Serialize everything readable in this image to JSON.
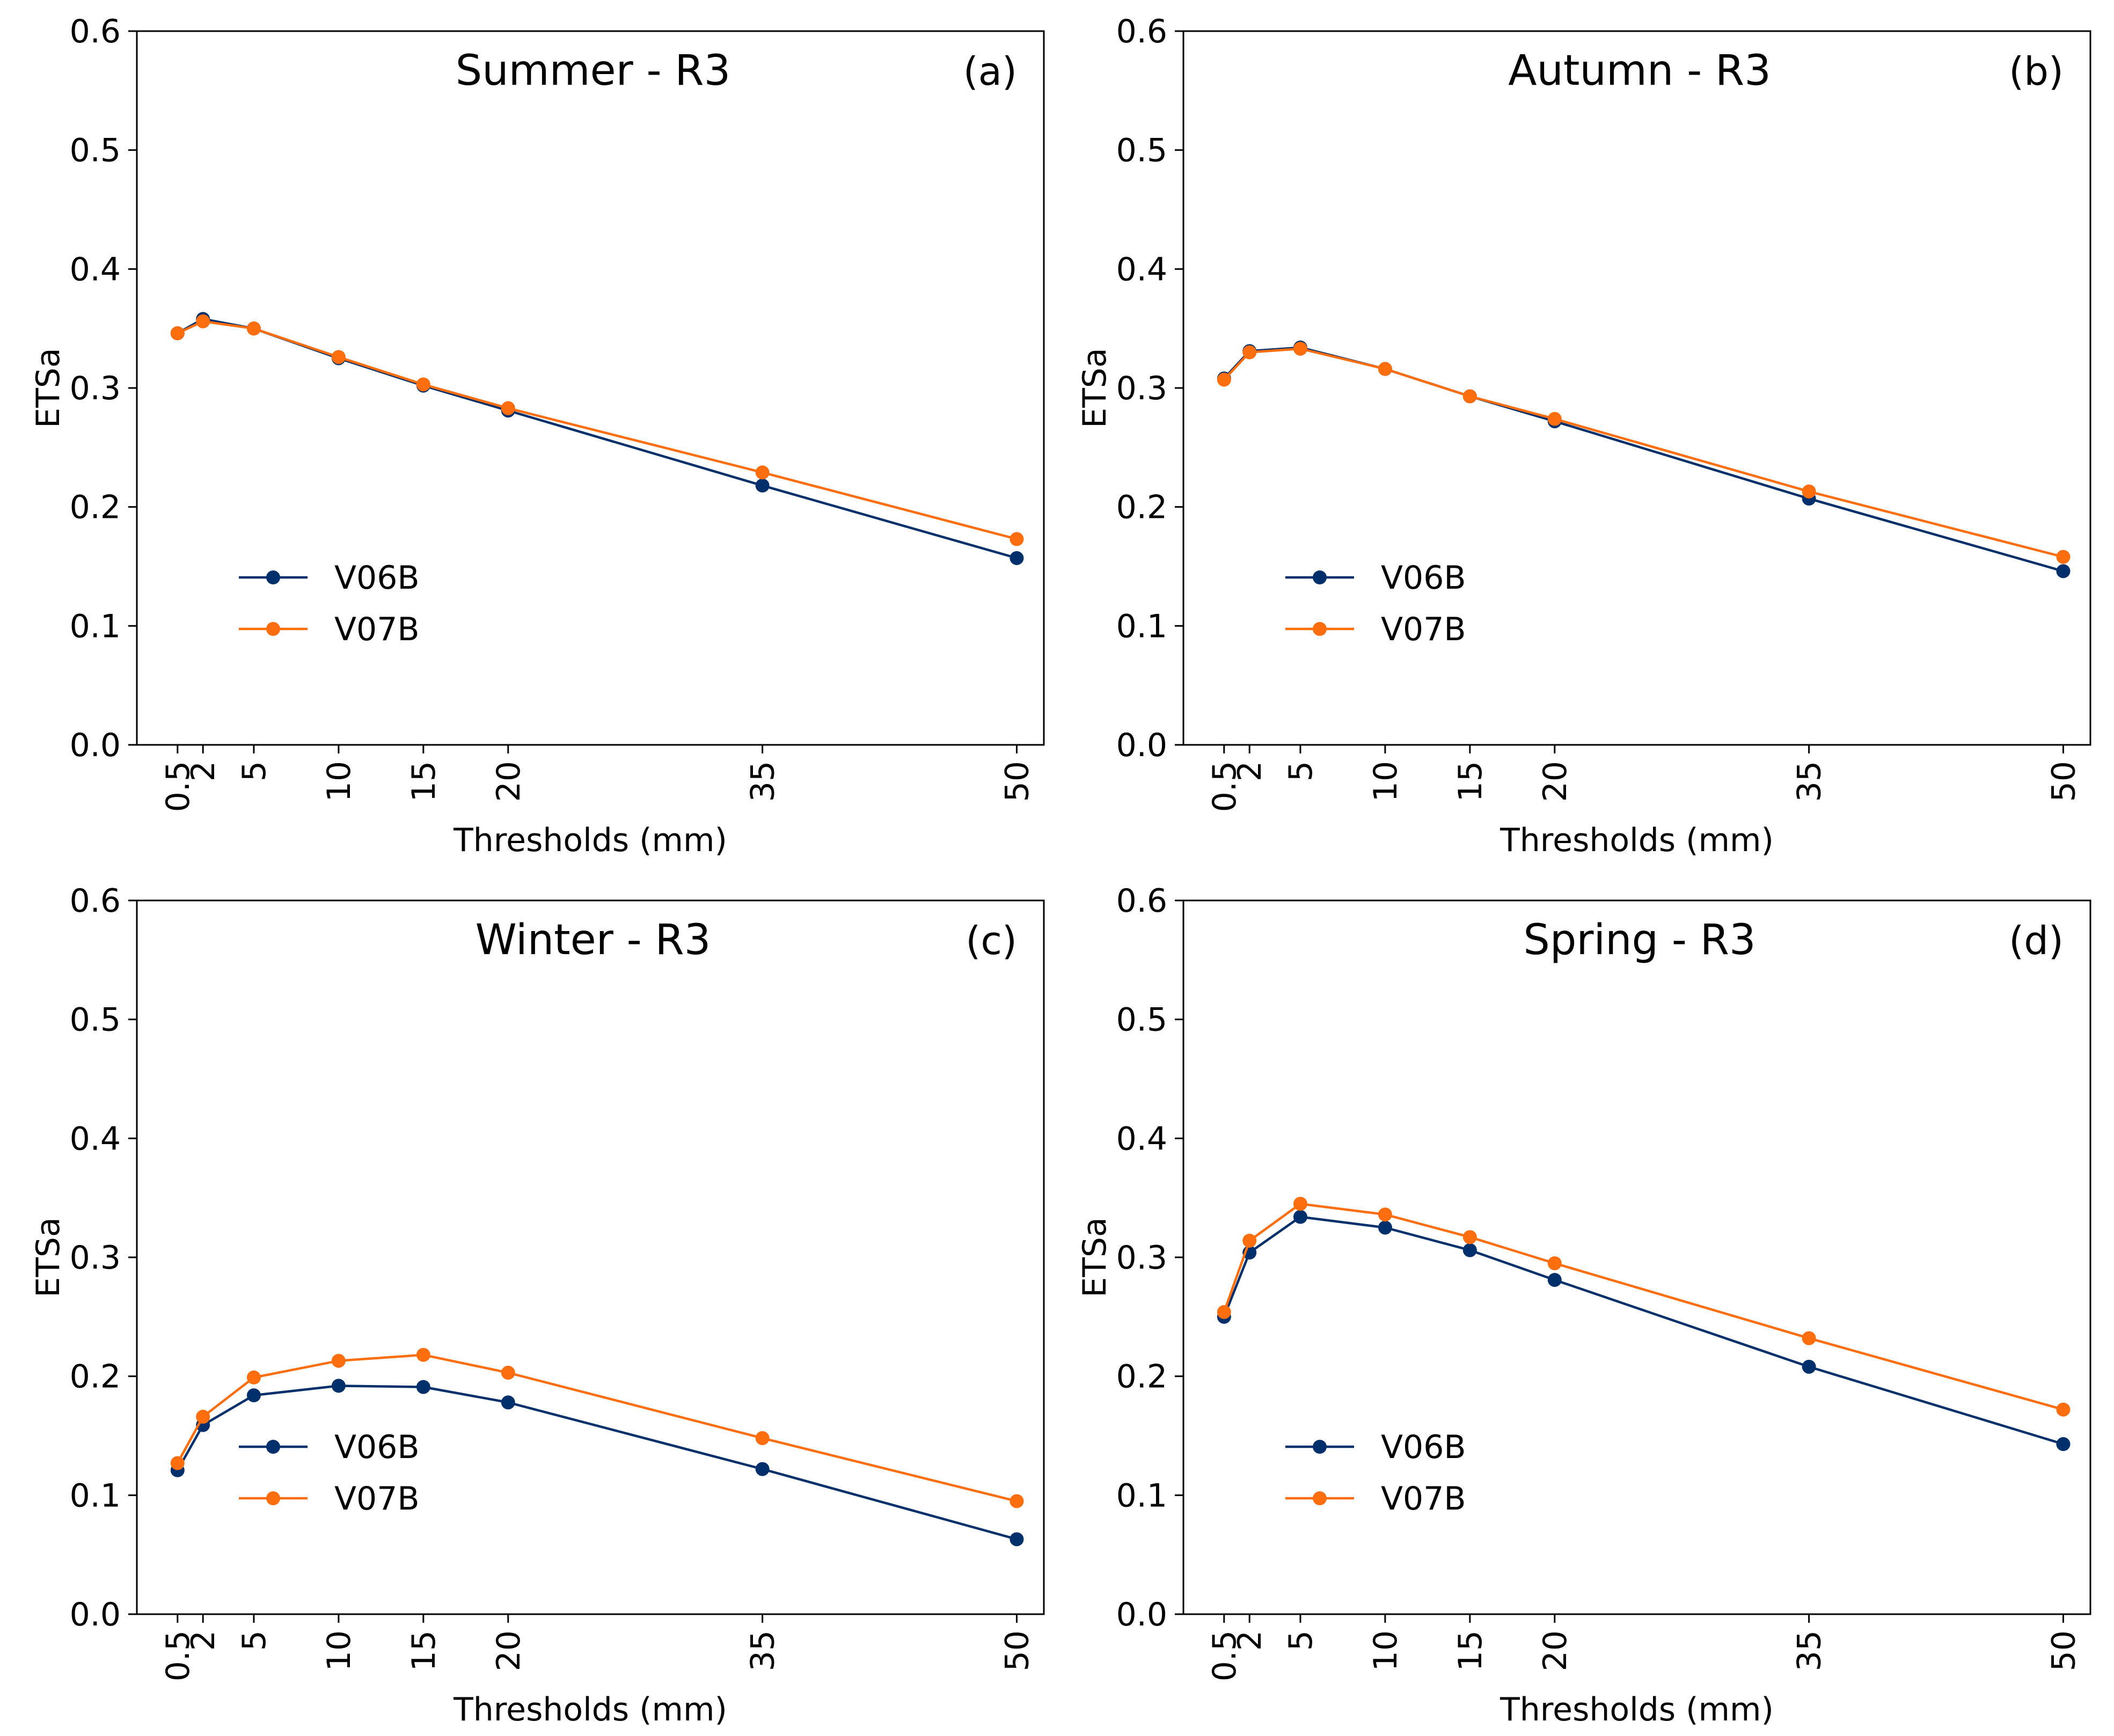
{
  "figure": {
    "series_colors": {
      "V06B": "#00306b",
      "V07B": "#ff6e0e"
    }
  },
  "chart_data": [
    {
      "type": "line",
      "title": "Summer - R3",
      "panel_tag": "(a)",
      "xlabel": "Thresholds (mm)",
      "ylabel": "ETSa",
      "x": [
        0.5,
        2,
        5,
        10,
        15,
        20,
        35,
        50
      ],
      "x_tick_labels": [
        "0.5",
        "2",
        "5",
        "10",
        "15",
        "20",
        "35",
        "50"
      ],
      "ylim": [
        0.0,
        0.6
      ],
      "y_ticks": [
        0.0,
        0.1,
        0.2,
        0.3,
        0.4,
        0.5,
        0.6
      ],
      "y_tick_labels": [
        "0.0",
        "0.1",
        "0.2",
        "0.3",
        "0.4",
        "0.5",
        "0.6"
      ],
      "legend_position": "lower-left",
      "series": [
        {
          "name": "V06B",
          "color": "#00306b",
          "values": [
            0.346,
            0.358,
            0.35,
            0.325,
            0.302,
            0.281,
            0.218,
            0.157
          ]
        },
        {
          "name": "V07B",
          "color": "#ff6e0e",
          "values": [
            0.346,
            0.356,
            0.35,
            0.326,
            0.303,
            0.283,
            0.229,
            0.173
          ]
        }
      ]
    },
    {
      "type": "line",
      "title": "Autumn - R3",
      "panel_tag": "(b)",
      "xlabel": "Thresholds (mm)",
      "ylabel": "ETSa",
      "x": [
        0.5,
        2,
        5,
        10,
        15,
        20,
        35,
        50
      ],
      "x_tick_labels": [
        "0.5",
        "2",
        "5",
        "10",
        "15",
        "20",
        "35",
        "50"
      ],
      "ylim": [
        0.0,
        0.6
      ],
      "y_ticks": [
        0.0,
        0.1,
        0.2,
        0.3,
        0.4,
        0.5,
        0.6
      ],
      "y_tick_labels": [
        "0.0",
        "0.1",
        "0.2",
        "0.3",
        "0.4",
        "0.5",
        "0.6"
      ],
      "legend_position": "lower-left",
      "series": [
        {
          "name": "V06B",
          "color": "#00306b",
          "values": [
            0.308,
            0.331,
            0.334,
            0.316,
            0.293,
            0.272,
            0.207,
            0.146
          ]
        },
        {
          "name": "V07B",
          "color": "#ff6e0e",
          "values": [
            0.307,
            0.33,
            0.333,
            0.316,
            0.293,
            0.274,
            0.213,
            0.158
          ]
        }
      ]
    },
    {
      "type": "line",
      "title": "Winter - R3",
      "panel_tag": "(c)",
      "xlabel": "Thresholds (mm)",
      "ylabel": "ETSa",
      "x": [
        0.5,
        2,
        5,
        10,
        15,
        20,
        35,
        50
      ],
      "x_tick_labels": [
        "0.5",
        "2",
        "5",
        "10",
        "15",
        "20",
        "35",
        "50"
      ],
      "ylim": [
        0.0,
        0.6
      ],
      "y_ticks": [
        0.0,
        0.1,
        0.2,
        0.3,
        0.4,
        0.5,
        0.6
      ],
      "y_tick_labels": [
        "0.0",
        "0.1",
        "0.2",
        "0.3",
        "0.4",
        "0.5",
        "0.6"
      ],
      "legend_position": "lower-left",
      "series": [
        {
          "name": "V06B",
          "color": "#00306b",
          "values": [
            0.121,
            0.159,
            0.184,
            0.192,
            0.191,
            0.178,
            0.122,
            0.063
          ]
        },
        {
          "name": "V07B",
          "color": "#ff6e0e",
          "values": [
            0.127,
            0.166,
            0.199,
            0.213,
            0.218,
            0.203,
            0.148,
            0.095
          ]
        }
      ]
    },
    {
      "type": "line",
      "title": "Spring - R3",
      "panel_tag": "(d)",
      "xlabel": "Thresholds (mm)",
      "ylabel": "ETSa",
      "x": [
        0.5,
        2,
        5,
        10,
        15,
        20,
        35,
        50
      ],
      "x_tick_labels": [
        "0.5",
        "2",
        "5",
        "10",
        "15",
        "20",
        "35",
        "50"
      ],
      "ylim": [
        0.0,
        0.6
      ],
      "y_ticks": [
        0.0,
        0.1,
        0.2,
        0.3,
        0.4,
        0.5,
        0.6
      ],
      "y_tick_labels": [
        "0.0",
        "0.1",
        "0.2",
        "0.3",
        "0.4",
        "0.5",
        "0.6"
      ],
      "legend_position": "lower-left",
      "series": [
        {
          "name": "V06B",
          "color": "#00306b",
          "values": [
            0.25,
            0.304,
            0.334,
            0.325,
            0.306,
            0.281,
            0.208,
            0.143
          ]
        },
        {
          "name": "V07B",
          "color": "#ff6e0e",
          "values": [
            0.254,
            0.314,
            0.345,
            0.336,
            0.317,
            0.295,
            0.232,
            0.172
          ]
        }
      ]
    }
  ]
}
